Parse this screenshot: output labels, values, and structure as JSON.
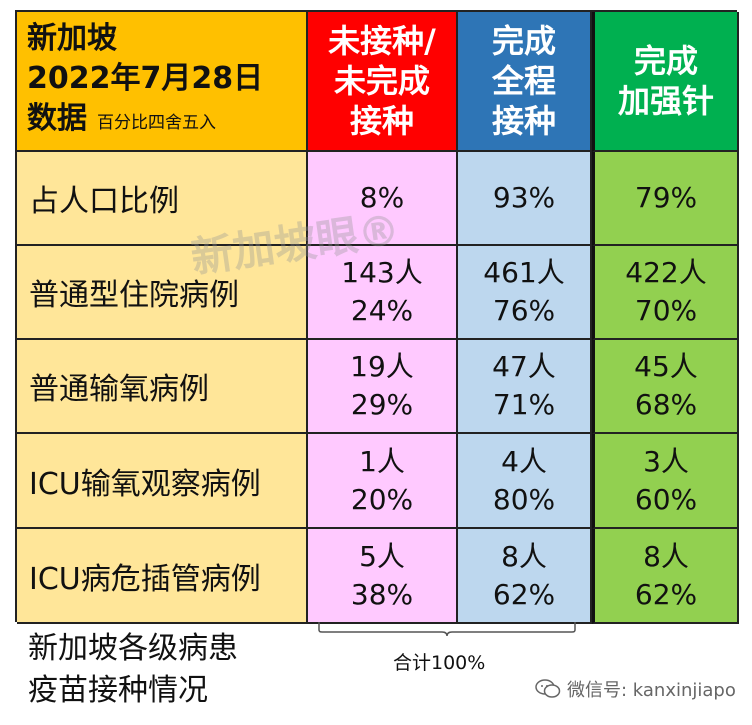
{
  "header": {
    "corner_line1": "新加坡",
    "corner_line2": "2022年7月28日",
    "corner_line3": "数据",
    "corner_note": "百分比四舍五入",
    "col1": [
      "未接种/",
      "未完成",
      "接种"
    ],
    "col2": [
      "完成",
      "全程",
      "接种"
    ],
    "col3": [
      "完成",
      "加强针"
    ]
  },
  "rows": [
    {
      "label": "占人口比例",
      "c1": [
        "8%"
      ],
      "c2": [
        "93%"
      ],
      "c3": [
        "79%"
      ]
    },
    {
      "label": "普通型住院病例",
      "c1": [
        "143人",
        "24%"
      ],
      "c2": [
        "461人",
        "76%"
      ],
      "c3": [
        "422人",
        "70%"
      ]
    },
    {
      "label": "普通输氧病例",
      "c1": [
        "19人",
        "29%"
      ],
      "c2": [
        "47人",
        "71%"
      ],
      "c3": [
        "45人",
        "68%"
      ]
    },
    {
      "label": "ICU输氧观察病例",
      "c1": [
        "1人",
        "20%"
      ],
      "c2": [
        "4人",
        "80%"
      ],
      "c3": [
        "3人",
        "60%"
      ]
    },
    {
      "label": "ICU病危插管病例",
      "c1": [
        "5人",
        "38%"
      ],
      "c2": [
        "8人",
        "62%"
      ],
      "c3": [
        "8人",
        "62%"
      ]
    }
  ],
  "total_note": "合计100%",
  "caption": [
    "新加坡各级病患",
    "疫苗接种情况"
  ],
  "watermark": "新加坡眼®",
  "wechat": "微信号: kanxinjiapo",
  "colors": {
    "corner": "#ffc000",
    "red": "#ff0000",
    "blue": "#2e75b6",
    "green": "#00b050",
    "label_bg": "#ffe699",
    "pink": "#ffc9ff",
    "light_blue": "#bdd7ee",
    "light_green": "#92d050"
  }
}
